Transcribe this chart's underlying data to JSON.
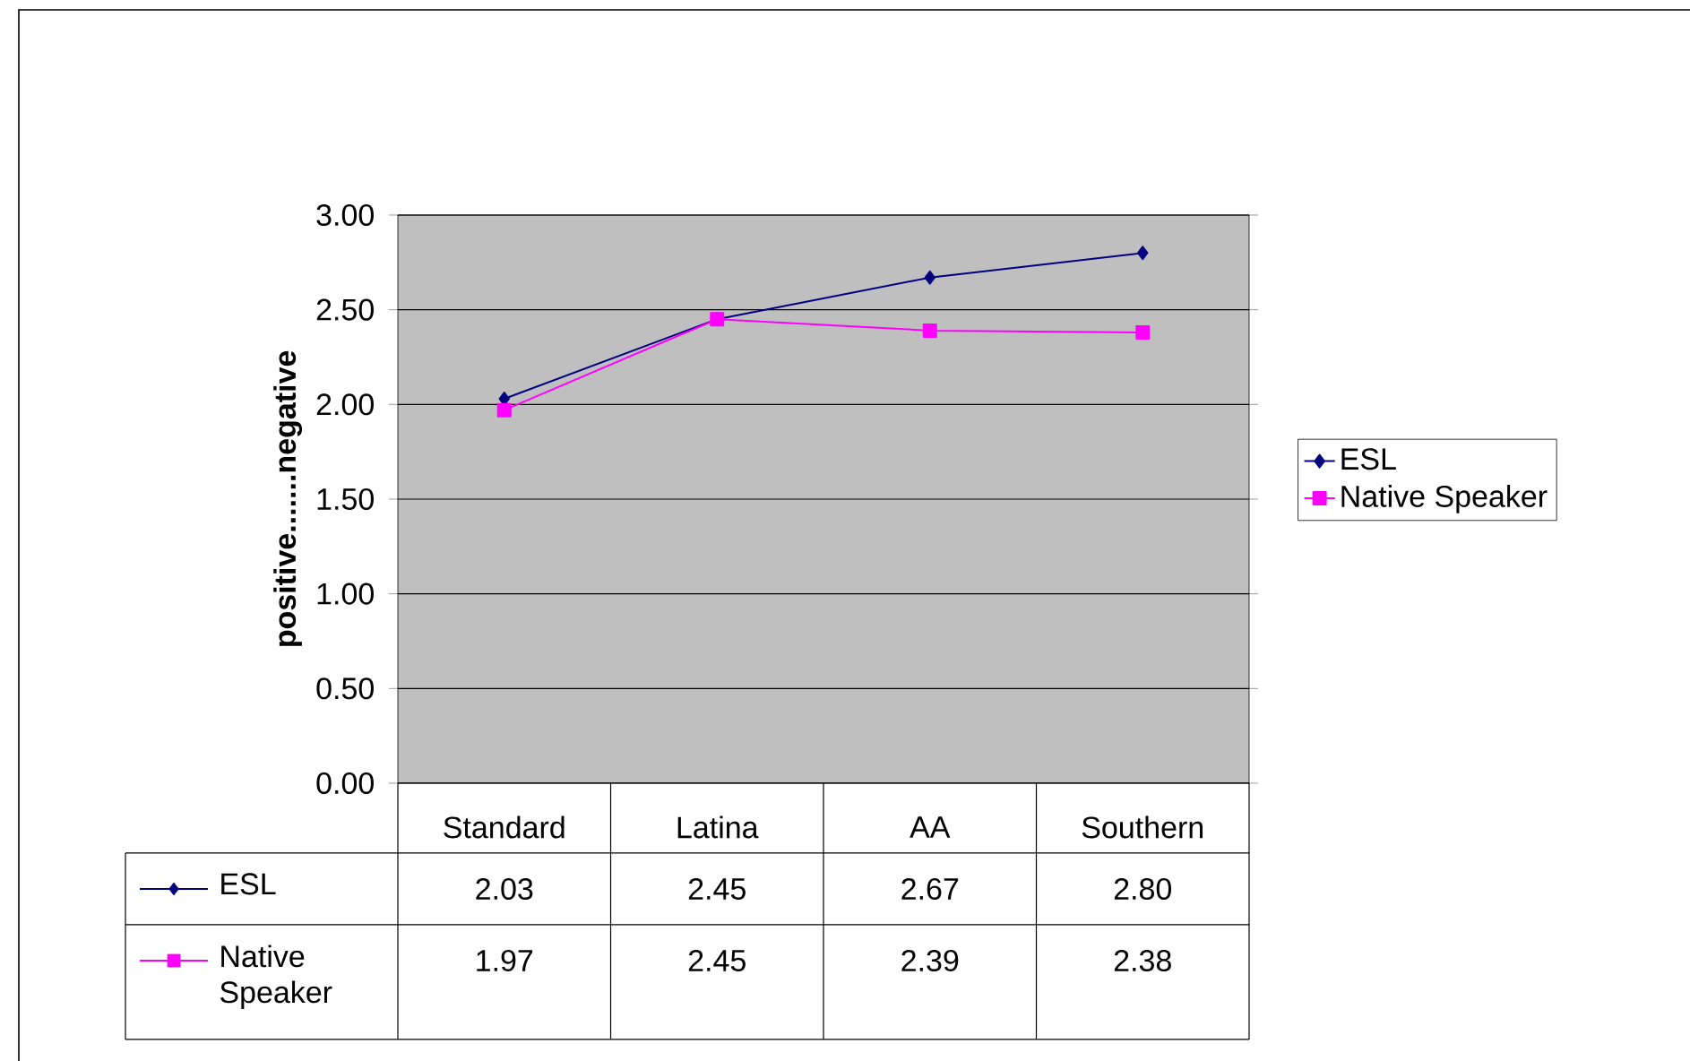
{
  "chart_data": {
    "type": "line",
    "ylabel": "positive.......negative",
    "categories": [
      "Standard",
      "Latina",
      "AA",
      "Southern"
    ],
    "series": [
      {
        "name": "ESL",
        "color": "#000080",
        "marker": "diamond",
        "values": [
          2.03,
          2.45,
          2.67,
          2.8
        ],
        "value_labels": [
          "2.03",
          "2.45",
          "2.67",
          "2.80"
        ]
      },
      {
        "name": "Native Speaker",
        "color": "#ff00ff",
        "marker": "square",
        "values": [
          1.97,
          2.45,
          2.39,
          2.38
        ],
        "value_labels": [
          "1.97",
          "2.45",
          "2.39",
          "2.38"
        ]
      }
    ],
    "ylim": [
      0,
      3
    ],
    "yticks": [
      {
        "value": 0,
        "label": "0.00"
      },
      {
        "value": 0.5,
        "label": "0.50"
      },
      {
        "value": 1,
        "label": "1.00"
      },
      {
        "value": 1.5,
        "label": "1.50"
      },
      {
        "value": 2,
        "label": "2.00"
      },
      {
        "value": 2.5,
        "label": "2.50"
      },
      {
        "value": 3,
        "label": "3.00"
      }
    ],
    "grid": "y",
    "legend": "right",
    "line_style": "solid"
  }
}
